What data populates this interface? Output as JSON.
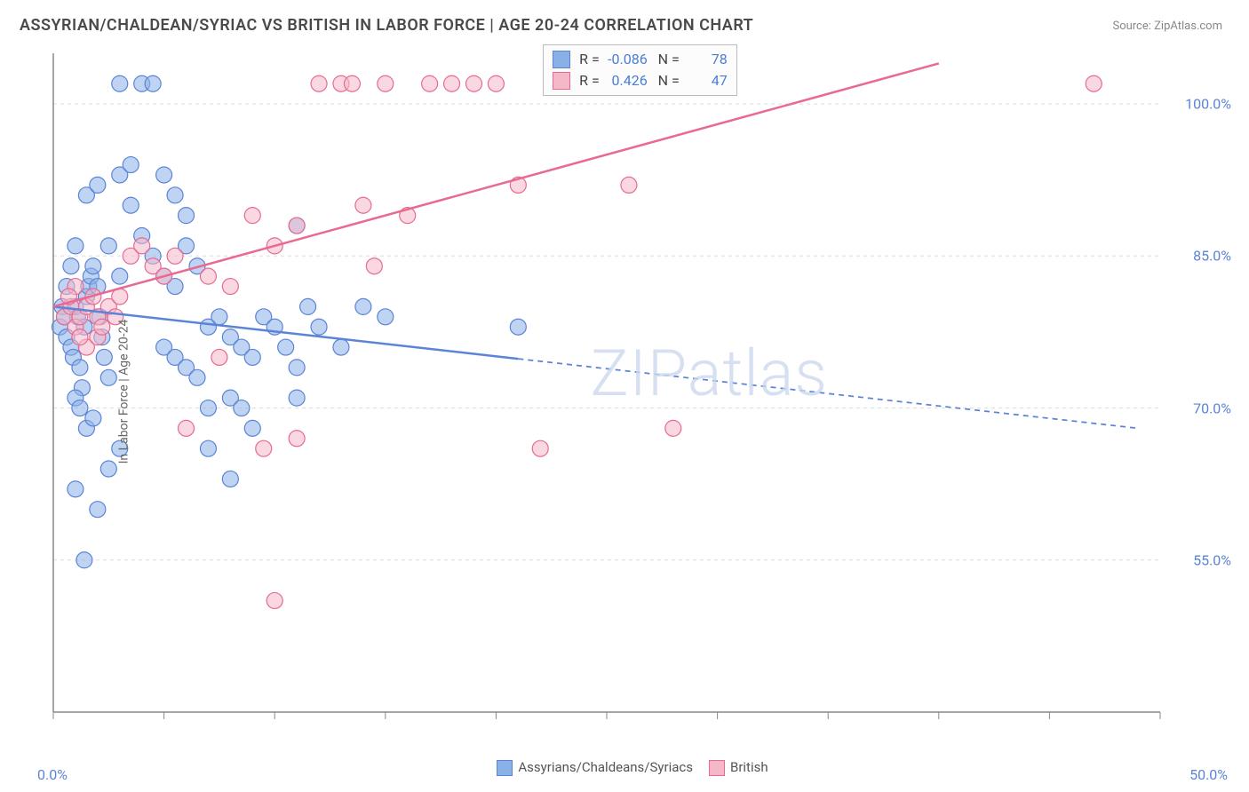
{
  "title": "ASSYRIAN/CHALDEAN/SYRIAC VS BRITISH IN LABOR FORCE | AGE 20-24 CORRELATION CHART",
  "source": "Source: ZipAtlas.com",
  "ylabel": "In Labor Force | Age 20-24",
  "watermark": "ZIPatlas",
  "chart": {
    "type": "scatter",
    "background_color": "#ffffff",
    "grid_color": "#dddddd",
    "axis_color": "#888888",
    "xlim": [
      0,
      50
    ],
    "ylim": [
      40,
      105
    ],
    "xticks": [
      0,
      5,
      10,
      15,
      20,
      25,
      30,
      35,
      40,
      45,
      50
    ],
    "yticks": [
      55,
      70,
      85,
      100
    ],
    "xtick_labels": {
      "left": "0.0%",
      "right": "50.0%"
    },
    "ytick_labels": [
      "55.0%",
      "70.0%",
      "85.0%",
      "100.0%"
    ],
    "tick_color": "#5b84d6",
    "marker_radius": 9,
    "marker_opacity": 0.55,
    "line_width": 2.5
  },
  "series": [
    {
      "name": "Assyrians/Chaldeans/Syriacs",
      "color": "#8ab0e8",
      "border": "#5b84d6",
      "R": "-0.086",
      "N": "78",
      "line": {
        "x1": 0,
        "y1": 80,
        "x2": 49,
        "y2": 68,
        "solid_until_x": 21
      },
      "points": [
        [
          0.3,
          78
        ],
        [
          0.4,
          80
        ],
        [
          0.5,
          79
        ],
        [
          0.6,
          77
        ],
        [
          0.8,
          76
        ],
        [
          0.9,
          75
        ],
        [
          1.0,
          80
        ],
        [
          1.1,
          79
        ],
        [
          1.2,
          74
        ],
        [
          1.3,
          72
        ],
        [
          1.4,
          78
        ],
        [
          1.5,
          81
        ],
        [
          1.6,
          82
        ],
        [
          1.7,
          83
        ],
        [
          1.8,
          84
        ],
        [
          2.0,
          82
        ],
        [
          2.1,
          79
        ],
        [
          2.2,
          77
        ],
        [
          2.3,
          75
        ],
        [
          2.5,
          73
        ],
        [
          1.0,
          71
        ],
        [
          1.2,
          70
        ],
        [
          1.5,
          68
        ],
        [
          1.8,
          69
        ],
        [
          1.0,
          62
        ],
        [
          1.4,
          55
        ],
        [
          2.0,
          60
        ],
        [
          2.5,
          64
        ],
        [
          3.0,
          66
        ],
        [
          1.5,
          91
        ],
        [
          2.0,
          92
        ],
        [
          3.0,
          93
        ],
        [
          3.5,
          94
        ],
        [
          3.0,
          102
        ],
        [
          4.0,
          102
        ],
        [
          4.5,
          102
        ],
        [
          3.5,
          90
        ],
        [
          4.0,
          87
        ],
        [
          4.5,
          85
        ],
        [
          5.0,
          83
        ],
        [
          5.5,
          82
        ],
        [
          6.0,
          86
        ],
        [
          6.5,
          84
        ],
        [
          5.0,
          76
        ],
        [
          5.5,
          75
        ],
        [
          6.0,
          74
        ],
        [
          6.5,
          73
        ],
        [
          7.0,
          70
        ],
        [
          5.0,
          93
        ],
        [
          5.5,
          91
        ],
        [
          6.0,
          89
        ],
        [
          7.0,
          78
        ],
        [
          7.5,
          79
        ],
        [
          8.0,
          77
        ],
        [
          8.5,
          76
        ],
        [
          9.0,
          75
        ],
        [
          8.0,
          71
        ],
        [
          8.5,
          70
        ],
        [
          9.0,
          68
        ],
        [
          9.5,
          79
        ],
        [
          10.0,
          78
        ],
        [
          10.5,
          76
        ],
        [
          11.0,
          74
        ],
        [
          11.0,
          88
        ],
        [
          11.5,
          80
        ],
        [
          12.0,
          78
        ],
        [
          13.0,
          76
        ],
        [
          14.0,
          80
        ],
        [
          15.0,
          79
        ],
        [
          21.0,
          78
        ],
        [
          11.0,
          71
        ],
        [
          7.0,
          66
        ],
        [
          8.0,
          63
        ],
        [
          2.5,
          86
        ],
        [
          3.0,
          83
        ],
        [
          0.6,
          82
        ],
        [
          0.8,
          84
        ],
        [
          1.0,
          86
        ]
      ]
    },
    {
      "name": "British",
      "color": "#f5b8c8",
      "border": "#e86a91",
      "R": "0.426",
      "N": "47",
      "line": {
        "x1": 0,
        "y1": 80,
        "x2": 40,
        "y2": 104,
        "solid_until_x": 40
      },
      "points": [
        [
          0.5,
          79
        ],
        [
          0.8,
          80
        ],
        [
          1.0,
          78
        ],
        [
          1.2,
          79
        ],
        [
          1.5,
          80
        ],
        [
          2.0,
          79
        ],
        [
          2.5,
          80
        ],
        [
          3.0,
          81
        ],
        [
          1.5,
          76
        ],
        [
          2.0,
          77
        ],
        [
          3.5,
          85
        ],
        [
          4.0,
          86
        ],
        [
          4.5,
          84
        ],
        [
          5.0,
          83
        ],
        [
          5.5,
          85
        ],
        [
          8.0,
          82
        ],
        [
          9.0,
          89
        ],
        [
          10.0,
          86
        ],
        [
          11.0,
          88
        ],
        [
          12.0,
          102
        ],
        [
          13.0,
          102
        ],
        [
          13.5,
          102
        ],
        [
          14.0,
          90
        ],
        [
          15.0,
          102
        ],
        [
          16.0,
          89
        ],
        [
          17.0,
          102
        ],
        [
          18.0,
          102
        ],
        [
          19.0,
          102
        ],
        [
          20.0,
          102
        ],
        [
          21.0,
          92
        ],
        [
          26.0,
          92
        ],
        [
          28.0,
          68
        ],
        [
          22.0,
          66
        ],
        [
          47.0,
          102
        ],
        [
          9.5,
          66
        ],
        [
          10.0,
          51
        ],
        [
          11.0,
          67
        ],
        [
          7.0,
          83
        ],
        [
          6.0,
          68
        ],
        [
          7.5,
          75
        ],
        [
          1.0,
          82
        ],
        [
          1.8,
          81
        ],
        [
          2.2,
          78
        ],
        [
          2.8,
          79
        ],
        [
          1.2,
          77
        ],
        [
          0.7,
          81
        ],
        [
          14.5,
          84
        ]
      ]
    }
  ],
  "stats_box": {
    "rows": [
      {
        "swatch_fill": "#8ab0e8",
        "swatch_border": "#5b84d6",
        "r_label": "R =",
        "r_val": "-0.086",
        "n_label": "N =",
        "n_val": "78"
      },
      {
        "swatch_fill": "#f5b8c8",
        "swatch_border": "#e86a91",
        "r_label": "R =",
        "r_val": "0.426",
        "n_label": "N =",
        "n_val": "47"
      }
    ]
  },
  "footer": {
    "items": [
      {
        "swatch_fill": "#8ab0e8",
        "swatch_border": "#5b84d6",
        "label": "Assyrians/Chaldeans/Syriacs"
      },
      {
        "swatch_fill": "#f5b8c8",
        "swatch_border": "#e86a91",
        "label": "British"
      }
    ]
  }
}
